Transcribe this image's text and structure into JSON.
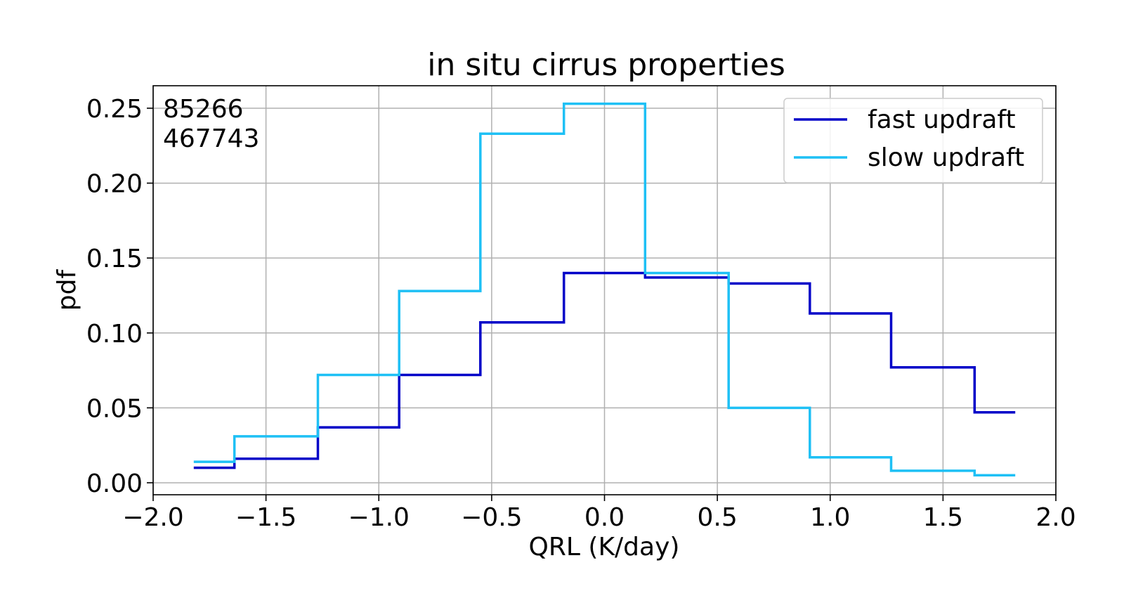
{
  "chart_data": {
    "type": "line",
    "step": true,
    "title": "in situ cirrus properties",
    "xlabel": "QRL (K/day)",
    "ylabel": "pdf",
    "xlim": [
      -2.0,
      2.0
    ],
    "ylim": [
      -0.008,
      0.265
    ],
    "xticks": [
      -2.0,
      -1.5,
      -1.0,
      -0.5,
      0.0,
      0.5,
      1.0,
      1.5,
      2.0
    ],
    "xtick_labels": [
      "−2.0",
      "−1.5",
      "−1.0",
      "−0.5",
      "0.0",
      "0.5",
      "1.0",
      "1.5",
      "2.0"
    ],
    "yticks": [
      0.0,
      0.05,
      0.1,
      0.15,
      0.2,
      0.25
    ],
    "ytick_labels": [
      "0.00",
      "0.05",
      "0.10",
      "0.15",
      "0.20",
      "0.25"
    ],
    "grid": true,
    "legend_position": "top-right",
    "annotations": [
      "85266",
      "467743"
    ],
    "bin_edges": [
      -1.82,
      -1.64,
      -1.27,
      -0.91,
      -0.55,
      -0.18,
      0.18,
      0.55,
      0.91,
      1.27,
      1.64,
      1.82
    ],
    "series": [
      {
        "name": "fast updraft",
        "color": "#0000c8",
        "values": [
          0.01,
          0.016,
          0.037,
          0.072,
          0.107,
          0.14,
          0.137,
          0.133,
          0.113,
          0.077,
          0.047
        ]
      },
      {
        "name": "slow updraft",
        "color": "#1ec0f5",
        "values": [
          0.014,
          0.031,
          0.072,
          0.128,
          0.233,
          0.253,
          0.14,
          0.05,
          0.017,
          0.008,
          0.005
        ]
      }
    ]
  }
}
